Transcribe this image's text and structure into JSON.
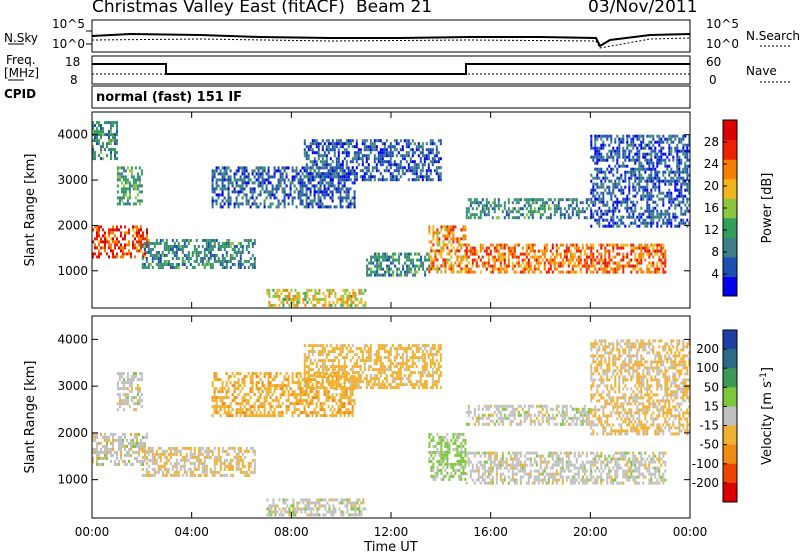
{
  "header": {
    "station": "Christmas Valley East (fitACF)",
    "beam": "Beam 21",
    "date": "03/Nov/2011"
  },
  "panels": {
    "nsky_label": "N.Sky",
    "nsearch_label": "N.Search",
    "freq_label_line1": "Freq.",
    "freq_label_line2": "[MHz]",
    "nave_label": "Nave",
    "cpid_label": "CPID",
    "cpid_value": "normal (fast) 151 IF",
    "nsky_ticks": [
      "10^5",
      "10^0"
    ],
    "nsearch_ticks": [
      "10^5",
      "10^0"
    ],
    "freq_ticks": [
      "18",
      "8"
    ],
    "nave_ticks": [
      "60",
      "0"
    ]
  },
  "colorbars": {
    "power": {
      "label": "Power [dB]",
      "ticks": [
        "28",
        "24",
        "20",
        "16",
        "12",
        "8",
        "4"
      ],
      "colors": [
        "#0000ee",
        "#1d4fb3",
        "#3c7f86",
        "#2ea05a",
        "#8cc63f",
        "#f2b51a",
        "#f77f00",
        "#ee2200",
        "#dd0000"
      ]
    },
    "velocity": {
      "label": "Velocity [m s",
      "label_sup": "-1",
      "label_end": "]",
      "ticks": [
        "200",
        "100",
        "50",
        "15",
        "-15",
        "-50",
        "-100",
        "-200"
      ],
      "colors": [
        "#1f3fa8",
        "#2a6b8a",
        "#3d9a55",
        "#7cc83a",
        "#c0c0c0",
        "#f0b030",
        "#f08a10",
        "#ee4400",
        "#dd0000"
      ]
    }
  },
  "chart_data": [
    {
      "type": "heatmap",
      "title": "Power",
      "ylabel": "Slant Range [km]",
      "ylim": [
        180,
        4500
      ],
      "yticks": [
        "4000",
        "3000",
        "2000",
        "1000"
      ],
      "xticks": [
        "00:00",
        "04:00",
        "08:00",
        "12:00",
        "16:00",
        "20:00",
        "00:00"
      ],
      "xlim_hours": [
        0,
        24
      ],
      "colorbar": "power",
      "regions": [
        {
          "t": [
            0.0,
            2.2
          ],
          "range": [
            1300,
            2000
          ],
          "value_db": 26
        },
        {
          "t": [
            0.0,
            1.0
          ],
          "range": [
            3500,
            4300
          ],
          "value_db": 10
        },
        {
          "t": [
            1.0,
            2.0
          ],
          "range": [
            2500,
            3300
          ],
          "value_db": 12
        },
        {
          "t": [
            2.0,
            6.5
          ],
          "range": [
            1100,
            1700
          ],
          "value_db": 10
        },
        {
          "t": [
            4.8,
            10.5
          ],
          "range": [
            2400,
            3300
          ],
          "value_db": 6
        },
        {
          "t": [
            8.5,
            14.0
          ],
          "range": [
            3000,
            3900
          ],
          "value_db": 6
        },
        {
          "t": [
            7.0,
            11.0
          ],
          "range": [
            250,
            600
          ],
          "value_db": 18
        },
        {
          "t": [
            11.0,
            13.5
          ],
          "range": [
            900,
            1400
          ],
          "value_db": 10
        },
        {
          "t": [
            13.5,
            15.0
          ],
          "range": [
            1000,
            2000
          ],
          "value_db": 22
        },
        {
          "t": [
            15.0,
            20.0
          ],
          "range": [
            950,
            1600
          ],
          "value_db": 24
        },
        {
          "t": [
            15.0,
            20.0
          ],
          "range": [
            2200,
            2600
          ],
          "value_db": 10
        },
        {
          "t": [
            20.0,
            23.0
          ],
          "range": [
            950,
            1600
          ],
          "value_db": 24
        },
        {
          "t": [
            20.0,
            24.0
          ],
          "range": [
            2000,
            4000
          ],
          "value_db": 6
        }
      ]
    },
    {
      "type": "heatmap",
      "title": "Velocity",
      "ylabel": "Slant Range [km]",
      "ylim": [
        180,
        4500
      ],
      "yticks": [
        "4000",
        "3000",
        "2000",
        "1000"
      ],
      "xticks": [
        "00:00",
        "04:00",
        "08:00",
        "12:00",
        "16:00",
        "20:00",
        "00:00"
      ],
      "xlabel": "Time UT",
      "xlim_hours": [
        0,
        24
      ],
      "colorbar": "velocity",
      "regions": [
        {
          "t": [
            0.0,
            2.2
          ],
          "range": [
            1300,
            2000
          ],
          "value_ms": 0
        },
        {
          "t": [
            1.0,
            2.0
          ],
          "range": [
            2500,
            3300
          ],
          "value_ms": 0
        },
        {
          "t": [
            2.0,
            6.5
          ],
          "range": [
            1100,
            1700
          ],
          "value_ms": -15
        },
        {
          "t": [
            4.8,
            10.5
          ],
          "range": [
            2400,
            3300
          ],
          "value_ms": -40
        },
        {
          "t": [
            8.5,
            14.0
          ],
          "range": [
            3000,
            3900
          ],
          "value_ms": -30
        },
        {
          "t": [
            7.0,
            11.0
          ],
          "range": [
            250,
            600
          ],
          "value_ms": 0
        },
        {
          "t": [
            13.5,
            15.0
          ],
          "range": [
            1000,
            2000
          ],
          "value_ms": 25
        },
        {
          "t": [
            15.0,
            20.0
          ],
          "range": [
            950,
            1600
          ],
          "value_ms": 0
        },
        {
          "t": [
            15.0,
            20.0
          ],
          "range": [
            2200,
            2600
          ],
          "value_ms": 0
        },
        {
          "t": [
            20.0,
            23.0
          ],
          "range": [
            950,
            1600
          ],
          "value_ms": 0
        },
        {
          "t": [
            20.0,
            24.0
          ],
          "range": [
            2000,
            4000
          ],
          "value_ms": -20
        }
      ]
    }
  ]
}
